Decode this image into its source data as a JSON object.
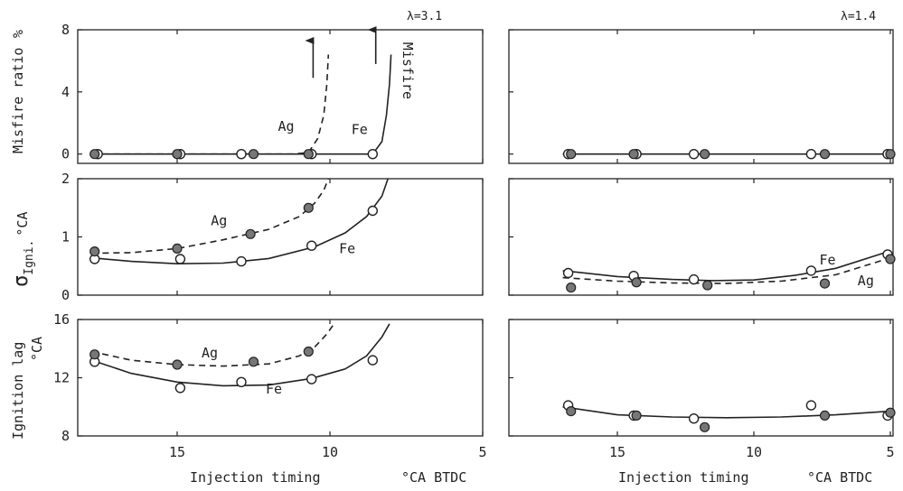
{
  "chart_data": {
    "type": "scatter",
    "xlabel": "Injection timing",
    "xunit": "°CA BTDC",
    "x_ticks": [
      15,
      10,
      5
    ],
    "x_ticks_label": [
      "15",
      "10",
      "5"
    ],
    "xlim": [
      18,
      5
    ],
    "rows": [
      {
        "key": "misfire",
        "ylabel": "Misfire ratio",
        "yunit": "%",
        "ylim": [
          -0.6,
          8
        ],
        "yticks": [
          0,
          4,
          8
        ],
        "yticks_label": [
          "0",
          "4",
          "8"
        ]
      },
      {
        "key": "sigma",
        "ylabel_main": "σ",
        "ylabel_sub": "Igni.",
        "yunit": "°CA",
        "ylim": [
          0,
          2
        ],
        "yticks": [
          0,
          1,
          2
        ],
        "yticks_label": [
          "0",
          "1",
          "2"
        ]
      },
      {
        "key": "lag",
        "ylabel_top": "Ignition lag",
        "yunit": "°CA",
        "ylim": [
          8,
          16
        ],
        "yticks": [
          8,
          12,
          16
        ],
        "yticks_label": [
          "8",
          "12",
          "16"
        ]
      }
    ],
    "columns": [
      {
        "lambda_label": "λ=3.1"
      },
      {
        "lambda_label": "λ=1.4"
      }
    ],
    "panels": [
      {
        "row": 0,
        "col": 0,
        "series": [
          {
            "name": "Fe",
            "points": [
              [
                17.6,
                0
              ],
              [
                14.9,
                0
              ],
              [
                12.9,
                0
              ],
              [
                10.6,
                0
              ],
              [
                8.6,
                0
              ]
            ],
            "curve": [
              [
                17.8,
                0
              ],
              [
                10,
                0
              ],
              [
                8.6,
                0
              ],
              [
                8.3,
                0.8
              ],
              [
                8.15,
                2.5
              ],
              [
                8.05,
                4.5
              ],
              [
                8.0,
                6.4
              ]
            ]
          },
          {
            "name": "Ag",
            "points": [
              [
                17.7,
                0
              ],
              [
                15.0,
                0
              ],
              [
                12.5,
                0
              ],
              [
                10.7,
                0
              ]
            ],
            "curve": [
              [
                17.8,
                0
              ],
              [
                11.2,
                0
              ],
              [
                10.7,
                0.1
              ],
              [
                10.4,
                1.0
              ],
              [
                10.2,
                2.5
              ],
              [
                10.1,
                4.5
              ],
              [
                10.05,
                6.4
              ]
            ],
            "dashed": true
          }
        ],
        "labels": [
          {
            "text": "Ag",
            "x": 11.7,
            "y": 1.5
          },
          {
            "text": "Fe",
            "x": 9.3,
            "y": 1.3
          },
          {
            "text": "Misfire",
            "x": 7.6,
            "y": 7.2,
            "vertical": true
          }
        ],
        "arrows": [
          {
            "x": 10.55,
            "y0": 4.9,
            "y1": 7.3
          },
          {
            "x": 8.5,
            "y0": 5.8,
            "y1": 8
          }
        ]
      },
      {
        "row": 0,
        "col": 1,
        "series": [
          {
            "name": "Fe",
            "points": [
              [
                16.8,
                0
              ],
              [
                14.3,
                0
              ],
              [
                12.2,
                0
              ],
              [
                7.9,
                0
              ],
              [
                5.1,
                0
              ]
            ],
            "curve": [
              [
                17.0,
                0
              ],
              [
                5.0,
                0
              ]
            ]
          },
          {
            "name": "Ag",
            "points": [
              [
                16.7,
                0
              ],
              [
                14.4,
                0
              ],
              [
                11.8,
                0
              ],
              [
                7.4,
                0
              ],
              [
                5.0,
                0
              ]
            ]
          }
        ],
        "labels": []
      },
      {
        "row": 1,
        "col": 0,
        "series": [
          {
            "name": "Fe",
            "points": [
              [
                17.7,
                0.62
              ],
              [
                14.9,
                0.62
              ],
              [
                12.9,
                0.58
              ],
              [
                10.6,
                0.85
              ],
              [
                8.6,
                1.45
              ]
            ],
            "curve": [
              [
                17.8,
                0.64
              ],
              [
                16.5,
                0.58
              ],
              [
                15,
                0.54
              ],
              [
                13.5,
                0.55
              ],
              [
                12,
                0.63
              ],
              [
                10.5,
                0.83
              ],
              [
                9.5,
                1.07
              ],
              [
                8.8,
                1.35
              ],
              [
                8.3,
                1.7
              ],
              [
                8.1,
                2.0
              ]
            ]
          },
          {
            "name": "Ag",
            "points": [
              [
                17.7,
                0.75
              ],
              [
                15.0,
                0.8
              ],
              [
                12.6,
                1.05
              ],
              [
                10.7,
                1.5
              ]
            ],
            "curve": [
              [
                17.8,
                0.72
              ],
              [
                16.5,
                0.73
              ],
              [
                15,
                0.8
              ],
              [
                13.5,
                0.95
              ],
              [
                12,
                1.13
              ],
              [
                11,
                1.35
              ],
              [
                10.5,
                1.58
              ],
              [
                10.2,
                1.8
              ],
              [
                10.05,
                2.0
              ]
            ],
            "dashed": true
          }
        ],
        "labels": [
          {
            "text": "Ag",
            "x": 13.9,
            "y": 1.2
          },
          {
            "text": "Fe",
            "x": 9.7,
            "y": 0.72
          }
        ]
      },
      {
        "row": 1,
        "col": 1,
        "series": [
          {
            "name": "Fe",
            "points": [
              [
                16.8,
                0.38
              ],
              [
                14.4,
                0.33
              ],
              [
                12.2,
                0.27
              ],
              [
                7.9,
                0.42
              ],
              [
                5.1,
                0.7
              ]
            ],
            "curve": [
              [
                17.0,
                0.42
              ],
              [
                15,
                0.32
              ],
              [
                13,
                0.27
              ],
              [
                11.5,
                0.25
              ],
              [
                10,
                0.26
              ],
              [
                8.5,
                0.34
              ],
              [
                7,
                0.46
              ],
              [
                5.0,
                0.76
              ]
            ]
          },
          {
            "name": "Ag",
            "points": [
              [
                16.7,
                0.13
              ],
              [
                14.3,
                0.22
              ],
              [
                11.7,
                0.17
              ],
              [
                7.4,
                0.2
              ],
              [
                5.0,
                0.62
              ]
            ],
            "curve": [
              [
                17.0,
                0.3
              ],
              [
                15,
                0.24
              ],
              [
                13,
                0.21
              ],
              [
                11,
                0.2
              ],
              [
                9,
                0.24
              ],
              [
                7,
                0.35
              ],
              [
                5.0,
                0.64
              ]
            ],
            "dashed": true
          }
        ],
        "labels": [
          {
            "text": "Fe",
            "x": 7.6,
            "y": 0.53
          },
          {
            "text": "Ag",
            "x": 6.2,
            "y": 0.17
          }
        ]
      },
      {
        "row": 2,
        "col": 0,
        "series": [
          {
            "name": "Fe",
            "points": [
              [
                17.7,
                13.1
              ],
              [
                14.9,
                11.3
              ],
              [
                12.9,
                11.7
              ],
              [
                10.6,
                11.9
              ],
              [
                8.6,
                13.2
              ]
            ],
            "curve": [
              [
                17.8,
                13.2
              ],
              [
                16.5,
                12.3
              ],
              [
                15,
                11.7
              ],
              [
                13.5,
                11.45
              ],
              [
                12,
                11.5
              ],
              [
                10.6,
                11.95
              ],
              [
                9.5,
                12.6
              ],
              [
                8.8,
                13.5
              ],
              [
                8.3,
                14.8
              ],
              [
                8.05,
                15.7
              ]
            ]
          },
          {
            "name": "Ag",
            "points": [
              [
                17.7,
                13.6
              ],
              [
                15.0,
                12.9
              ],
              [
                12.5,
                13.1
              ],
              [
                10.7,
                13.8
              ]
            ],
            "curve": [
              [
                17.8,
                13.8
              ],
              [
                16.5,
                13.2
              ],
              [
                15,
                12.9
              ],
              [
                13.5,
                12.8
              ],
              [
                12,
                12.95
              ],
              [
                11,
                13.5
              ],
              [
                10.5,
                14.1
              ],
              [
                10.1,
                15.0
              ],
              [
                9.9,
                15.6
              ]
            ],
            "dashed": true
          }
        ],
        "labels": [
          {
            "text": "Ag",
            "x": 14.2,
            "y": 13.4
          },
          {
            "text": "Fe",
            "x": 12.1,
            "y": 10.9
          }
        ]
      },
      {
        "row": 2,
        "col": 1,
        "series": [
          {
            "name": "Fe",
            "points": [
              [
                16.8,
                10.1
              ],
              [
                14.4,
                9.4
              ],
              [
                12.2,
                9.2
              ],
              [
                7.9,
                10.1
              ],
              [
                5.1,
                9.4
              ]
            ],
            "curve": [
              [
                17.0,
                10.0
              ],
              [
                15,
                9.45
              ],
              [
                13,
                9.3
              ],
              [
                11,
                9.25
              ],
              [
                9,
                9.3
              ],
              [
                7,
                9.45
              ],
              [
                5.0,
                9.7
              ]
            ]
          },
          {
            "name": "Ag",
            "points": [
              [
                16.7,
                9.7
              ],
              [
                14.3,
                9.4
              ],
              [
                11.8,
                8.6
              ],
              [
                7.4,
                9.4
              ],
              [
                5.0,
                9.6
              ]
            ]
          }
        ],
        "labels": []
      }
    ]
  }
}
